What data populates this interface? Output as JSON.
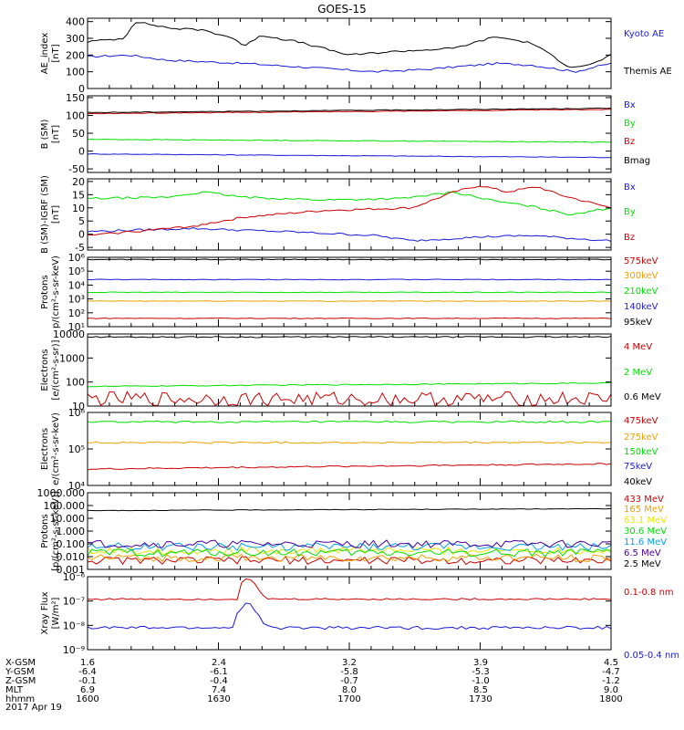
{
  "title": "GOES-15",
  "colors": {
    "black": "#000000",
    "blue": "#1a1ad6",
    "green": "#00e000",
    "red": "#cc0000",
    "orange": "#f0a000",
    "yellow": "#e6e600",
    "cyan": "#00a0e6",
    "purple": "#4b0096",
    "magenta": "#c000c0"
  },
  "time_axis": {
    "start": "1600",
    "end": "1800",
    "date": "2017 Apr 19",
    "rows": [
      {
        "label": "X-GSM",
        "values": [
          "1.6",
          "2.4",
          "3.2",
          "3.9",
          "4.5"
        ]
      },
      {
        "label": "Y-GSM",
        "values": [
          "-6.4",
          "-6.1",
          "-5.8",
          "-5.3",
          "-4.7"
        ]
      },
      {
        "label": "Z-GSM",
        "values": [
          "-0.1",
          "-0.4",
          "-0.7",
          "-1.0",
          "-1.2"
        ]
      },
      {
        "label": "MLT",
        "values": [
          "6.9",
          "7.4",
          "8.0",
          "8.5",
          "9.0"
        ]
      },
      {
        "label": "hhmm",
        "values": [
          "1600",
          "1630",
          "1700",
          "1730",
          "1800"
        ]
      }
    ]
  },
  "chart_data": [
    {
      "type": "line",
      "ylabel": "AE_index\n[nT]",
      "yscale": "linear",
      "ylim": [
        0,
        420
      ],
      "yticks": [
        {
          "v": 0,
          "t": "0"
        },
        {
          "v": 100,
          "t": "100"
        },
        {
          "v": 200,
          "t": "200"
        },
        {
          "v": 300,
          "t": "300"
        },
        {
          "v": 400,
          "t": "400"
        }
      ],
      "series": [
        {
          "name": "Kyoto AE",
          "color": "blue",
          "shape": "ae_kyoto"
        },
        {
          "name": "Themis AE",
          "color": "black",
          "shape": "ae_themis"
        }
      ]
    },
    {
      "type": "line",
      "ylabel": "B (SM)\n[nT]",
      "yscale": "linear",
      "ylim": [
        -60,
        155
      ],
      "yticks": [
        {
          "v": -50,
          "t": "-50"
        },
        {
          "v": 0,
          "t": "0"
        },
        {
          "v": 50,
          "t": "50"
        },
        {
          "v": 100,
          "t": "100"
        },
        {
          "v": 150,
          "t": "150"
        }
      ],
      "series": [
        {
          "name": "Bx",
          "color": "blue",
          "shape": "b_bx"
        },
        {
          "name": "By",
          "color": "green",
          "shape": "b_by"
        },
        {
          "name": "Bz",
          "color": "red",
          "shape": "b_bz"
        },
        {
          "name": "Bmag",
          "color": "black",
          "shape": "b_bmag"
        }
      ]
    },
    {
      "type": "line",
      "ylabel": "B (SM)-IGRF (SM)\n[nT]",
      "yscale": "linear",
      "ylim": [
        -6,
        21
      ],
      "yticks": [
        {
          "v": -5,
          "t": "-5"
        },
        {
          "v": 0,
          "t": "0"
        },
        {
          "v": 5,
          "t": "5"
        },
        {
          "v": 10,
          "t": "10"
        },
        {
          "v": 15,
          "t": "15"
        },
        {
          "v": 20,
          "t": "20"
        }
      ],
      "series": [
        {
          "name": "Bx",
          "color": "blue",
          "shape": "d_bx"
        },
        {
          "name": "By",
          "color": "green",
          "shape": "d_by"
        },
        {
          "name": "Bz",
          "color": "red",
          "shape": "d_bz"
        }
      ]
    },
    {
      "type": "line",
      "ylabel": "Protons\np/(cm²-s-sr-keV)",
      "yscale": "log",
      "ylim": [
        10,
        1000000
      ],
      "yticks": [
        {
          "v": 10,
          "t": "10¹"
        },
        {
          "v": 100,
          "t": "10²"
        },
        {
          "v": 1000,
          "t": "10³"
        },
        {
          "v": 10000,
          "t": "10⁴"
        },
        {
          "v": 100000,
          "t": "10⁵"
        },
        {
          "v": 1000000,
          "t": "10⁶"
        }
      ],
      "series": [
        {
          "name": "575keV",
          "color": "red",
          "shape": "flat",
          "level": 40
        },
        {
          "name": "300keV",
          "color": "orange",
          "shape": "flat",
          "level": 700
        },
        {
          "name": "210keV",
          "color": "green",
          "shape": "flat",
          "level": 3000
        },
        {
          "name": "140keV",
          "color": "blue",
          "shape": "flat",
          "level": 25000
        },
        {
          "name": "95keV",
          "color": "black",
          "shape": "flat",
          "level": 700000
        }
      ]
    },
    {
      "type": "line",
      "ylabel": "Electrons\n[e/(cm²-s-sr)]",
      "yscale": "log",
      "ylim": [
        10,
        10000
      ],
      "yticks": [
        {
          "v": 10,
          "t": "10"
        },
        {
          "v": 100,
          "t": "100"
        },
        {
          "v": 1000,
          "t": "1000"
        },
        {
          "v": 10000,
          "t": "10000"
        }
      ],
      "series": [
        {
          "name": "4 MeV",
          "color": "red",
          "shape": "noisy",
          "level": 20
        },
        {
          "name": "2 MeV",
          "color": "green",
          "shape": "rising",
          "level": 65
        },
        {
          "name": "0.6 MeV",
          "color": "black",
          "shape": "flat",
          "level": 7500
        }
      ]
    },
    {
      "type": "line",
      "ylabel": "Electrons\ne/(cm²-s-sr-keV)",
      "yscale": "log",
      "ylim": [
        10000,
        1000000
      ],
      "yticks": [
        {
          "v": 10000,
          "t": "10⁴"
        },
        {
          "v": 100000,
          "t": "10⁵"
        },
        {
          "v": 1000000,
          "t": "10⁶"
        }
      ],
      "series": [
        {
          "name": "475keV",
          "color": "red",
          "shape": "rising",
          "level": 28000
        },
        {
          "name": "275keV",
          "color": "orange",
          "shape": "flat",
          "level": 150000
        },
        {
          "name": "150keV",
          "color": "green",
          "shape": "flat",
          "level": 550000
        },
        {
          "name": "75keV",
          "color": "blue",
          "shape": "flat",
          "level": 2500000
        },
        {
          "name": "40keV",
          "color": "black",
          "shape": "flat",
          "level": 8000000
        }
      ]
    },
    {
      "type": "line",
      "ylabel": "Protons\n[p/(cm²-s-sr-keV)]",
      "yscale": "log",
      "ylim": [
        0.001,
        1000
      ],
      "yticks": [
        {
          "v": 0.001,
          "t": "0.001"
        },
        {
          "v": 0.01,
          "t": "0.010"
        },
        {
          "v": 0.1,
          "t": "0.100"
        },
        {
          "v": 1,
          "t": "1.000"
        },
        {
          "v": 10,
          "t": "10.000"
        },
        {
          "v": 100,
          "t": "100.000"
        },
        {
          "v": 1000,
          "t": "1000.000"
        }
      ],
      "series": [
        {
          "name": "433 MeV",
          "color": "red",
          "shape": "noisy",
          "level": 0.005
        },
        {
          "name": "165 MeV",
          "color": "orange",
          "shape": "noisy",
          "level": 0.008
        },
        {
          "name": "63.1 MeV",
          "color": "yellow",
          "shape": "noisy",
          "level": 0.03
        },
        {
          "name": "30.6 MeV",
          "color": "green",
          "shape": "noisy",
          "level": 0.02
        },
        {
          "name": "11.6 MeV",
          "color": "cyan",
          "shape": "noisy",
          "level": 0.06
        },
        {
          "name": "6.5 MeV",
          "color": "purple",
          "shape": "noisy",
          "level": 0.1
        },
        {
          "name": "2.5 MeV",
          "color": "black",
          "shape": "rising",
          "level": 40
        }
      ]
    },
    {
      "type": "line",
      "ylabel": "Xray Flux\n[W/m²]",
      "yscale": "log",
      "ylim": [
        1e-09,
        1e-06
      ],
      "yticks": [
        {
          "v": 1e-09,
          "t": "10⁻⁹"
        },
        {
          "v": 1e-08,
          "t": "10⁻⁸"
        },
        {
          "v": 1e-07,
          "t": "10⁻⁷"
        },
        {
          "v": 1e-06,
          "t": "10⁻⁶"
        }
      ],
      "series": [
        {
          "name": "0.1-0.8 nm",
          "color": "red",
          "shape": "xray_long"
        },
        {
          "name": "0.05-0.4 nm",
          "color": "blue",
          "shape": "xray_short"
        }
      ]
    }
  ]
}
